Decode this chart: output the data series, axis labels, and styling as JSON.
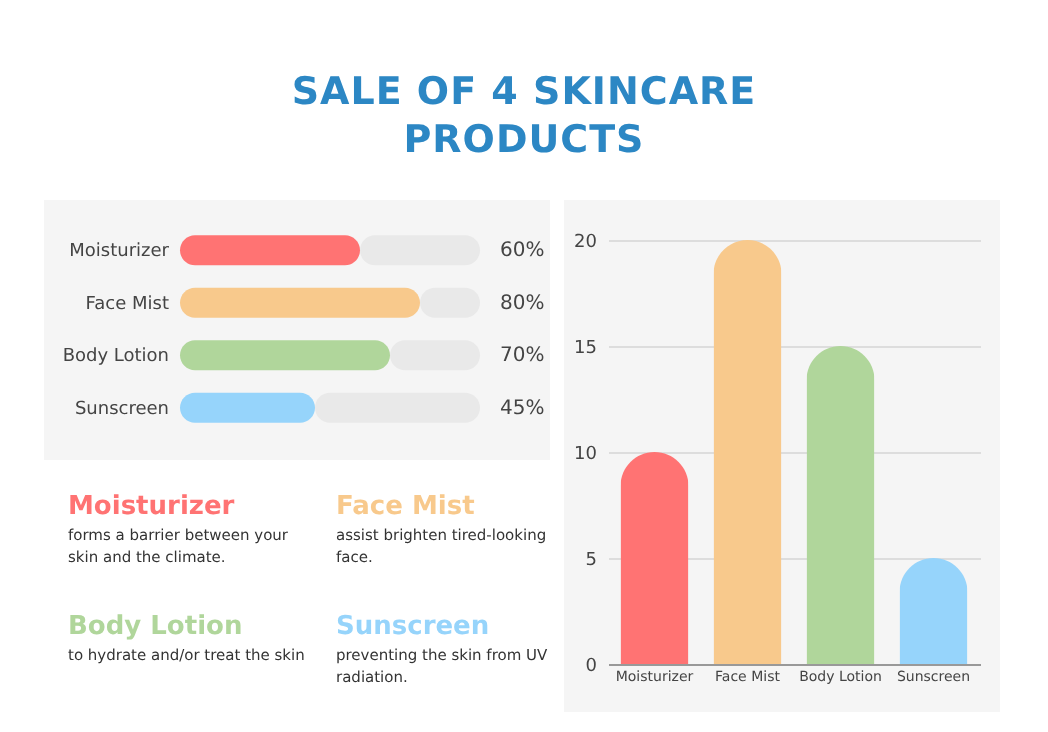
{
  "chart_data": [
    {
      "type": "bar",
      "title": "SALE OF 4 SKINCARE PRODUCTS",
      "orientation": "horizontal",
      "stacked": true,
      "categories": [
        "Moisturizer",
        "Face Mist",
        "Body Lotion",
        "Sunscreen"
      ],
      "xlim": [
        0,
        100
      ],
      "tick_labels": "y",
      "series": [
        {
          "colors": [
            "#ff7373",
            "#f8c98c",
            "#b0d69b",
            "#96d4fb"
          ],
          "values": [
            60,
            80,
            70,
            45
          ],
          "value_labels": [
            "60%",
            "80%",
            "70%",
            "45%"
          ]
        },
        {
          "color": "#e9e9e9",
          "values": [
            40,
            20,
            30,
            55
          ]
        }
      ]
    },
    {
      "type": "bar",
      "categories": [
        "Moisturizer",
        "Face Mist",
        "Body Lotion",
        "Sunscreen"
      ],
      "values": [
        10,
        20,
        15,
        5
      ],
      "colors": [
        "#ff7373",
        "#f8c98c",
        "#b0d69b",
        "#96d4fb"
      ],
      "ylim": [
        0,
        20
      ],
      "yticks": [
        0,
        5,
        10,
        15,
        20
      ],
      "grid": "y"
    },
    {
      "type": "other",
      "annotations": [
        "Moisturizer",
        "forms a barrier between your skin and the climate.",
        "Face Mist",
        "assist brighten tired-looking face.",
        "Body Lotion",
        "to hydrate and/or treat the skin",
        "Sunscreen",
        "preventing the skin from UV radiation."
      ]
    }
  ]
}
